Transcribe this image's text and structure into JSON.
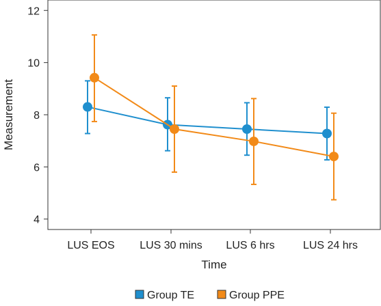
{
  "chart_data": {
    "type": "line",
    "xlabel": "Time",
    "ylabel": "Measurement",
    "categories": [
      "LUS EOS",
      "LUS 30 mins",
      "LUS 6 hrs",
      "LUS 24 hrs"
    ],
    "ylim": [
      3.6,
      12.4
    ],
    "yticks": [
      4,
      6,
      8,
      10,
      12
    ],
    "grid": false,
    "legend_position": "bottom",
    "series": [
      {
        "name": "Group TE",
        "color": "#1f8fce",
        "values": [
          8.3,
          7.62,
          7.45,
          7.28
        ],
        "error_low": [
          7.28,
          6.62,
          6.45,
          6.27
        ],
        "error_high": [
          9.3,
          8.65,
          8.46,
          8.29
        ]
      },
      {
        "name": "Group PPE",
        "color": "#f28a18",
        "values": [
          9.42,
          7.45,
          6.98,
          6.4
        ],
        "error_low": [
          7.74,
          5.8,
          5.33,
          4.74
        ],
        "error_high": [
          11.06,
          9.1,
          8.62,
          8.06
        ]
      }
    ]
  }
}
